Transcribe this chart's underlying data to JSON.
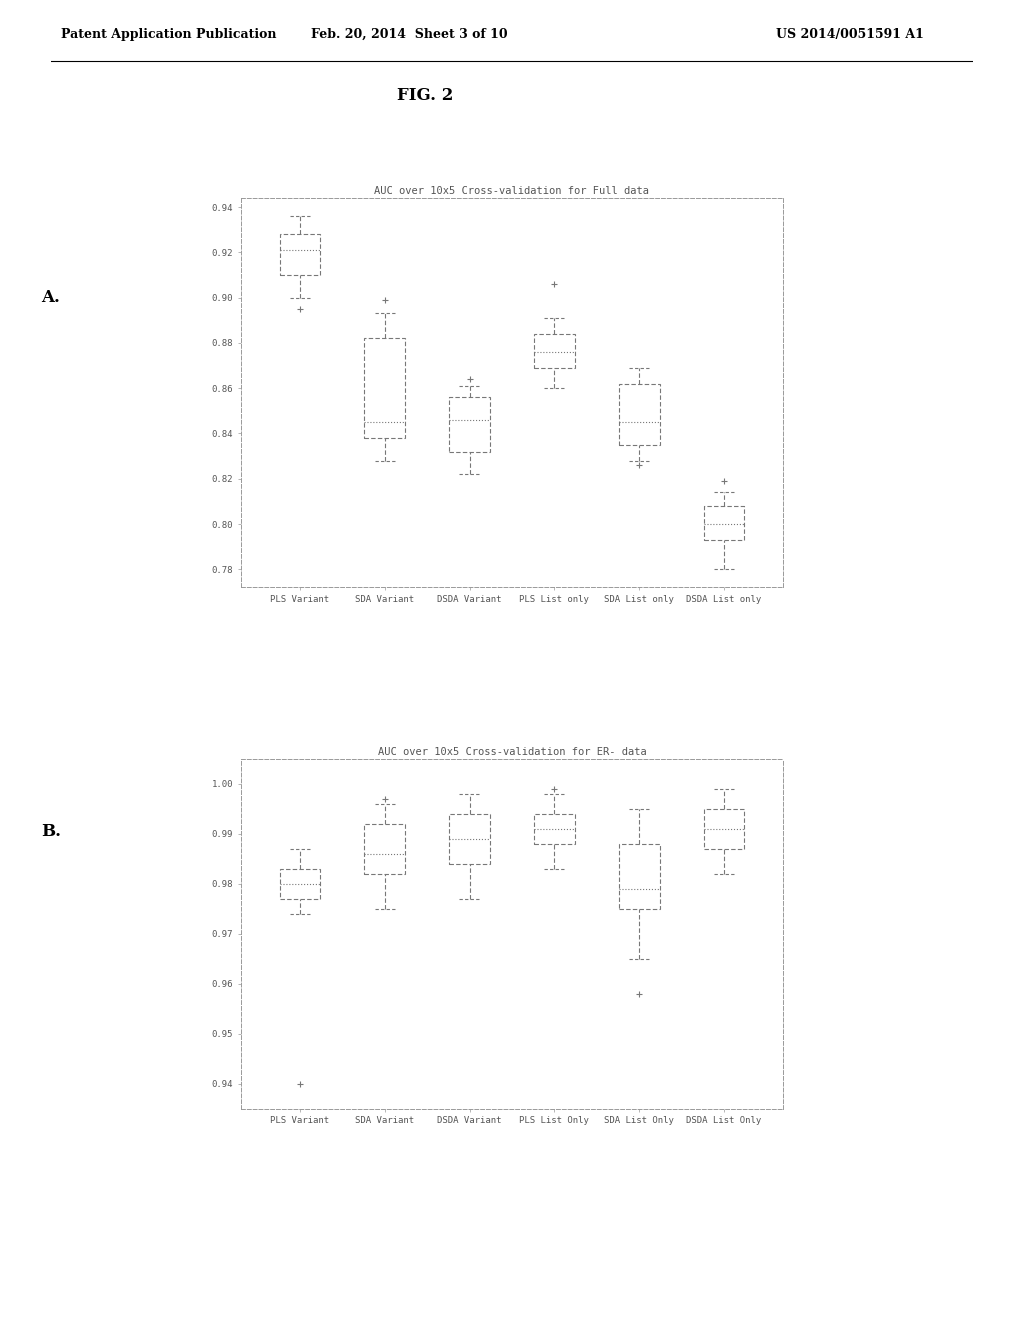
{
  "header_left": "Patent Application Publication",
  "header_mid": "Feb. 20, 2014  Sheet 3 of 10",
  "header_right": "US 2014/0051591 A1",
  "fig_title": "FIG. 2",
  "panel_A_label": "A.",
  "panel_B_label": "B.",
  "plot_A": {
    "title": "AUC over 10x5 Cross-validation for Full data",
    "categories": [
      "PLS Variant",
      "SDA Variant",
      "DSDA Variant",
      "PLS List only",
      "SDA List only",
      "DSDA List only"
    ],
    "ylim": [
      0.772,
      0.944
    ],
    "yticks": [
      0.78,
      0.8,
      0.82,
      0.84,
      0.86,
      0.88,
      0.9,
      0.92,
      0.94
    ],
    "boxes": [
      {
        "q1": 0.91,
        "median": 0.921,
        "q3": 0.928,
        "whisker_low": 0.9,
        "whisker_high": 0.936,
        "outlier_low": 0.895,
        "outlier_high": null
      },
      {
        "q1": 0.838,
        "median": 0.845,
        "q3": 0.882,
        "whisker_low": 0.828,
        "whisker_high": 0.893,
        "outlier_low": null,
        "outlier_high": 0.899
      },
      {
        "q1": 0.832,
        "median": 0.846,
        "q3": 0.856,
        "whisker_low": 0.822,
        "whisker_high": 0.861,
        "outlier_low": null,
        "outlier_high": 0.864
      },
      {
        "q1": 0.869,
        "median": 0.876,
        "q3": 0.884,
        "whisker_low": 0.86,
        "whisker_high": 0.891,
        "outlier_low": null,
        "outlier_high": 0.906
      },
      {
        "q1": 0.835,
        "median": 0.845,
        "q3": 0.862,
        "whisker_low": 0.828,
        "whisker_high": 0.869,
        "outlier_low": 0.826,
        "outlier_high": null
      },
      {
        "q1": 0.793,
        "median": 0.8,
        "q3": 0.808,
        "whisker_low": 0.78,
        "whisker_high": 0.814,
        "outlier_low": null,
        "outlier_high": 0.819
      }
    ]
  },
  "plot_B": {
    "title": "AUC over 10x5 Cross-validation for ER- data",
    "categories": [
      "PLS Variant",
      "SDA Variant",
      "DSDA Variant",
      "PLS List Only",
      "SDA List Only",
      "DSDA List Only"
    ],
    "ylim": [
      0.935,
      1.005
    ],
    "yticks": [
      0.94,
      0.95,
      0.96,
      0.97,
      0.98,
      0.99,
      1.0
    ],
    "boxes": [
      {
        "q1": 0.977,
        "median": 0.98,
        "q3": 0.983,
        "whisker_low": 0.974,
        "whisker_high": 0.987,
        "outlier_low": 0.94,
        "outlier_high": null
      },
      {
        "q1": 0.982,
        "median": 0.986,
        "q3": 0.992,
        "whisker_low": 0.975,
        "whisker_high": 0.996,
        "outlier_low": null,
        "outlier_high": 0.997
      },
      {
        "q1": 0.984,
        "median": 0.989,
        "q3": 0.994,
        "whisker_low": 0.977,
        "whisker_high": 0.998,
        "outlier_low": null,
        "outlier_high": null
      },
      {
        "q1": 0.988,
        "median": 0.991,
        "q3": 0.994,
        "whisker_low": 0.983,
        "whisker_high": 0.998,
        "outlier_low": null,
        "outlier_high": 0.999
      },
      {
        "q1": 0.975,
        "median": 0.979,
        "q3": 0.988,
        "whisker_low": 0.965,
        "whisker_high": 0.995,
        "outlier_low": 0.958,
        "outlier_high": null
      },
      {
        "q1": 0.987,
        "median": 0.991,
        "q3": 0.995,
        "whisker_low": 0.982,
        "whisker_high": 0.999,
        "outlier_low": null,
        "outlier_high": null
      }
    ]
  },
  "background": "#ffffff"
}
